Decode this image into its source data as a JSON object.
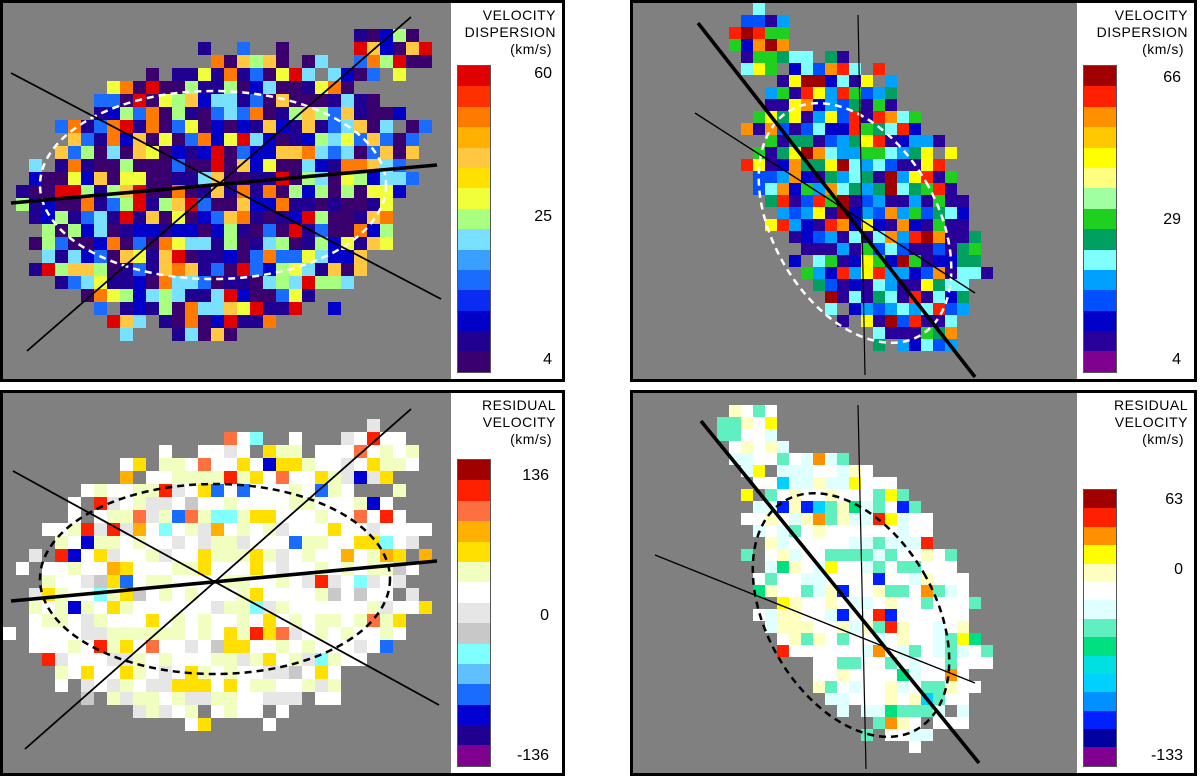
{
  "panels": [
    {
      "id": "dispersion-left",
      "title_lines": [
        "VELOCITY",
        "DISPERSION"
      ],
      "unit": "(km/s)",
      "ticks": [
        "60",
        "25",
        "4"
      ],
      "colors": [
        "#3a006e",
        "#1f0090",
        "#0000c8",
        "#0a2cf0",
        "#1a6cff",
        "#3aa0ff",
        "#7ae0ff",
        "#a8ff80",
        "#f0ff3a",
        "#ffe000",
        "#ffc840",
        "#ffb000",
        "#ff7a00",
        "#ff3000",
        "#e00000"
      ],
      "map_palette": [
        "#3a006e",
        "#1f0090",
        "#0000c8",
        "#1a6cff",
        "#7ae0ff",
        "#a8ff80",
        "#f0ff3a",
        "#ffc840",
        "#ff7a00",
        "#e00000"
      ]
    },
    {
      "id": "dispersion-right",
      "title_lines": [
        "VELOCITY",
        "DISPERSION"
      ],
      "unit": "(km/s)",
      "ticks": [
        "66",
        "29",
        "4"
      ],
      "colors": [
        "#800090",
        "#2a009a",
        "#0000c8",
        "#0050ff",
        "#00a0ff",
        "#80ffff",
        "#00a060",
        "#20d020",
        "#a0ffa0",
        "#ffff80",
        "#ffff00",
        "#ffc800",
        "#ff9000",
        "#ff2000",
        "#a00000"
      ],
      "map_palette": [
        "#2a009a",
        "#0000c8",
        "#0050ff",
        "#00a0ff",
        "#80ffff",
        "#00a060",
        "#20d020",
        "#ffff00",
        "#ff9000",
        "#ff2000",
        "#a00000"
      ]
    },
    {
      "id": "residual-left",
      "title_lines": [
        "RESIDUAL",
        "VELOCITY"
      ],
      "unit": "(km/s)",
      "ticks": [
        "136",
        "0",
        "-136"
      ],
      "colors": [
        "#800090",
        "#1f0090",
        "#0000d0",
        "#1a6cff",
        "#60c0ff",
        "#80ffff",
        "#c8c8c8",
        "#e6e6e6",
        "#ffffff",
        "#f0ffc0",
        "#ffe000",
        "#ffb000",
        "#ff7040",
        "#ff2000",
        "#a00000"
      ],
      "map_palette": [
        "#0000d0",
        "#1a6cff",
        "#80ffff",
        "#c8c8c8",
        "#e6e6e6",
        "#ffffff",
        "#ffffff",
        "#f0ffc0",
        "#ffe000",
        "#ffb000",
        "#ff7040",
        "#ff2000"
      ]
    },
    {
      "id": "residual-right",
      "title_lines": [
        "RESIDUAL",
        "VELOCITY"
      ],
      "unit": "(km/s)",
      "ticks": [
        "63",
        "0",
        "-133"
      ],
      "colors": [
        "#800090",
        "#0000a0",
        "#0020ff",
        "#0090ff",
        "#00d0ff",
        "#00e0e0",
        "#00e080",
        "#60f0c0",
        "#e0ffff",
        "#ffffff",
        "#ffffc0",
        "#ffff00",
        "#ff9000",
        "#ff2000",
        "#a00000"
      ],
      "map_palette": [
        "#0020ff",
        "#00d0ff",
        "#00e080",
        "#60f0c0",
        "#e0ffff",
        "#ffffff",
        "#ffffff",
        "#ffffc0",
        "#ffff00",
        "#ff9000",
        "#ff2000"
      ]
    }
  ]
}
